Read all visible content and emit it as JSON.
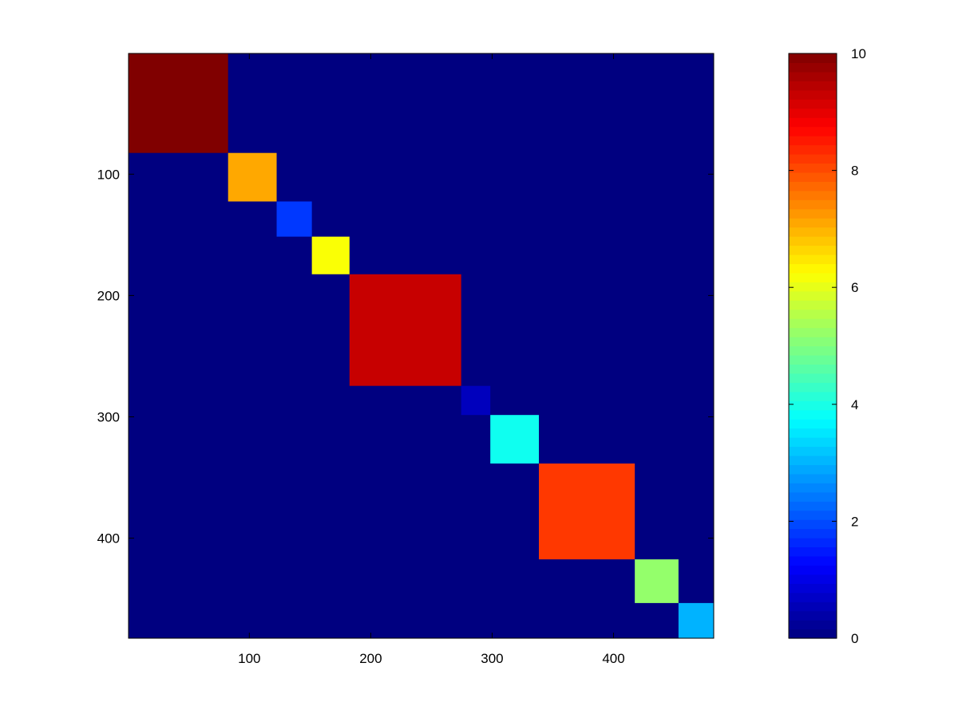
{
  "chart_data": {
    "type": "heatmap",
    "title": "",
    "xlabel": "",
    "ylabel": "",
    "matrix_size": 482,
    "xlim": [
      0.5,
      482.5
    ],
    "ylim": [
      0.5,
      482.5
    ],
    "y_direction": "reversed",
    "xticks": [
      100,
      200,
      300,
      400
    ],
    "yticks": [
      100,
      200,
      300,
      400
    ],
    "background_value": 0,
    "blocks": [
      {
        "start": 1,
        "end": 82,
        "value": 10
      },
      {
        "start": 83,
        "end": 122,
        "value": 7.1
      },
      {
        "start": 123,
        "end": 151,
        "value": 1.8
      },
      {
        "start": 152,
        "end": 182,
        "value": 6.2
      },
      {
        "start": 183,
        "end": 274,
        "value": 9.3
      },
      {
        "start": 275,
        "end": 298,
        "value": 0.6
      },
      {
        "start": 299,
        "end": 338,
        "value": 3.9
      },
      {
        "start": 339,
        "end": 417,
        "value": 8.2
      },
      {
        "start": 418,
        "end": 453,
        "value": 5.2
      },
      {
        "start": 454,
        "end": 482,
        "value": 3.0
      }
    ],
    "colorbar": {
      "colormap": "jet",
      "clim": [
        0,
        10
      ],
      "ticks": [
        0,
        2,
        4,
        6,
        8,
        10
      ]
    },
    "grid": false,
    "legend": "none"
  }
}
